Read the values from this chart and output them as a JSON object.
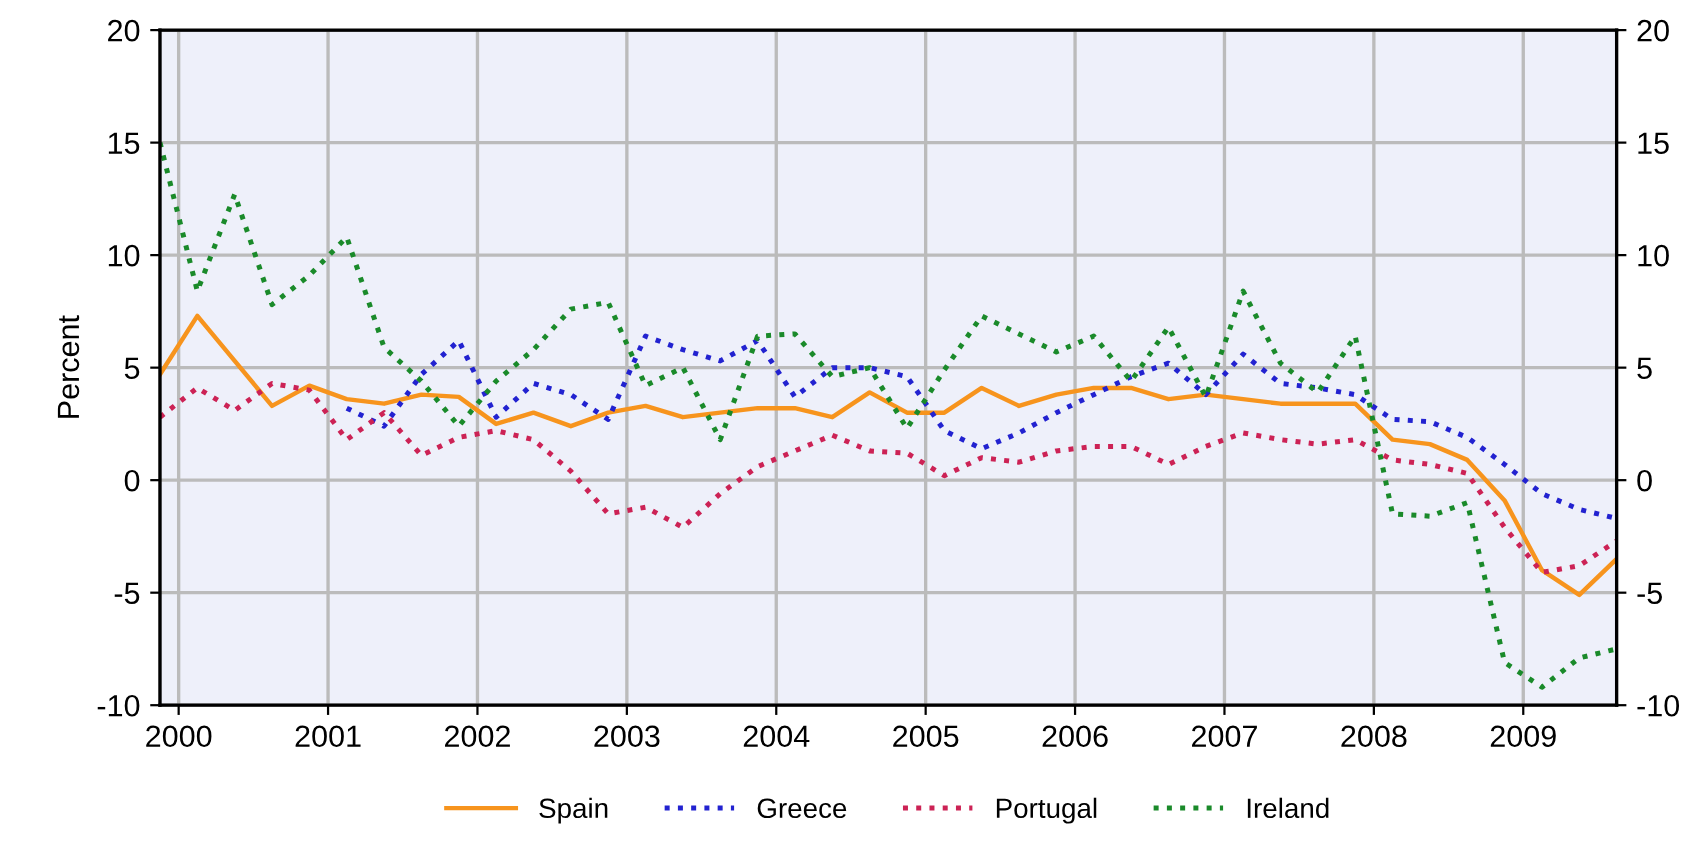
{
  "chart_data": {
    "type": "line",
    "ylabel": "Percent",
    "x": [
      1999.875,
      2000.125,
      2000.375,
      2000.625,
      2000.875,
      2001.125,
      2001.375,
      2001.625,
      2001.875,
      2002.125,
      2002.375,
      2002.625,
      2002.875,
      2003.125,
      2003.375,
      2003.625,
      2003.875,
      2004.125,
      2004.375,
      2004.625,
      2004.875,
      2005.125,
      2005.375,
      2005.625,
      2005.875,
      2006.125,
      2006.375,
      2006.625,
      2006.875,
      2007.125,
      2007.375,
      2007.625,
      2007.875,
      2008.125,
      2008.375,
      2008.625,
      2008.875,
      2009.125,
      2009.375,
      2009.625
    ],
    "series": [
      {
        "name": "Spain",
        "color": "#f7941d",
        "line_style": "solid",
        "values": [
          4.7,
          7.3,
          5.3,
          3.3,
          4.2,
          3.6,
          3.4,
          3.8,
          3.7,
          2.5,
          3.0,
          2.4,
          3.0,
          3.3,
          2.8,
          3.0,
          3.2,
          3.2,
          2.8,
          3.9,
          3.0,
          3.0,
          4.1,
          3.3,
          3.8,
          4.1,
          4.1,
          3.6,
          3.8,
          3.6,
          3.4,
          3.4,
          3.4,
          1.8,
          1.6,
          0.9,
          -0.9,
          -4.0,
          -5.1,
          -3.5
        ]
      },
      {
        "name": "Greece",
        "color": "#2222d0",
        "line_style": "dotted",
        "values": [
          null,
          null,
          null,
          null,
          null,
          3.2,
          2.4,
          4.7,
          6.2,
          2.8,
          4.3,
          3.8,
          2.7,
          6.4,
          5.8,
          5.3,
          6.2,
          3.7,
          5.0,
          5.0,
          4.6,
          2.2,
          1.4,
          2.1,
          3.0,
          3.8,
          4.6,
          5.2,
          3.8,
          5.6,
          4.3,
          4.1,
          3.8,
          2.7,
          2.6,
          1.9,
          0.7,
          -0.6,
          -1.3,
          -1.7
        ]
      },
      {
        "name": "Portugal",
        "color": "#cc2255",
        "line_style": "dotted",
        "values": [
          2.8,
          4.1,
          3.1,
          4.3,
          4.0,
          1.8,
          3.0,
          1.1,
          1.9,
          2.2,
          1.8,
          0.4,
          -1.5,
          -1.2,
          -2.1,
          -0.6,
          0.6,
          1.3,
          2.0,
          1.3,
          1.2,
          0.2,
          1.0,
          0.8,
          1.3,
          1.5,
          1.5,
          0.7,
          1.5,
          2.1,
          1.8,
          1.6,
          1.8,
          0.9,
          0.7,
          0.3,
          -2.1,
          -4.1,
          -3.8,
          -2.7
        ]
      },
      {
        "name": "Ireland",
        "color": "#1a8a2a",
        "line_style": "dotted",
        "values": [
          15.0,
          8.4,
          12.7,
          7.8,
          9.1,
          10.8,
          5.9,
          4.4,
          2.4,
          4.4,
          5.8,
          7.6,
          7.9,
          4.2,
          5.0,
          1.8,
          6.4,
          6.5,
          4.6,
          5.0,
          2.3,
          4.9,
          7.3,
          6.5,
          5.7,
          6.4,
          4.4,
          6.8,
          3.7,
          8.4,
          5.2,
          3.9,
          6.4,
          -1.5,
          -1.6,
          -1.0,
          -8.1,
          -9.2,
          -7.9,
          -7.5
        ]
      }
    ],
    "xlim": [
      1999.875,
      2009.625
    ],
    "xticks": [
      2000,
      2001,
      2002,
      2003,
      2004,
      2005,
      2006,
      2007,
      2008,
      2009
    ],
    "ylim": [
      -10,
      20
    ],
    "yticks": [
      -10,
      -5,
      0,
      5,
      10,
      15,
      20
    ],
    "y2lim": [
      -10,
      20
    ],
    "y2ticks": [
      -10,
      -5,
      0,
      5,
      10,
      15,
      20
    ],
    "grid": true,
    "legend": "bottom",
    "marker": "none"
  }
}
